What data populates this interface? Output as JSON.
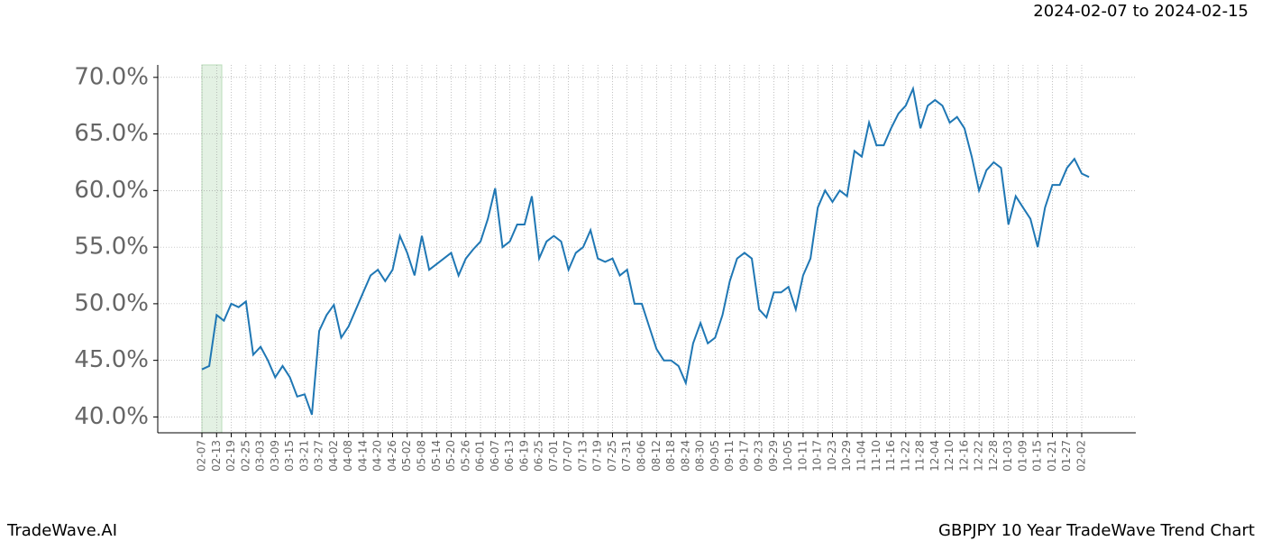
{
  "chart_data": {
    "type": "line",
    "title": "GBPJPY 10 Year TradeWave Trend Chart",
    "subtitle": "2024-02-07 to 2024-02-15",
    "brand": "TradeWave.AI",
    "categories": [
      "02-07",
      null,
      "02-13",
      null,
      "02-19",
      null,
      "02-25",
      null,
      "03-03",
      null,
      "03-09",
      null,
      "03-15",
      null,
      "03-21",
      null,
      "03-27",
      null,
      "04-02",
      null,
      "04-08",
      null,
      "04-14",
      null,
      "04-20",
      null,
      "04-26",
      null,
      "05-02",
      null,
      "05-08",
      null,
      "05-14",
      null,
      "05-20",
      null,
      "05-26",
      null,
      "06-01",
      null,
      "06-07",
      null,
      "06-13",
      null,
      "06-19",
      null,
      "06-25",
      null,
      "07-01",
      null,
      "07-07",
      null,
      "07-13",
      null,
      "07-19",
      null,
      "07-25",
      null,
      "07-31",
      null,
      "08-06",
      null,
      "08-12",
      null,
      "08-18",
      null,
      "08-24",
      null,
      "08-30",
      null,
      "09-05",
      null,
      "09-11",
      null,
      "09-17",
      null,
      "09-23",
      null,
      "09-29",
      null,
      "10-05",
      null,
      "10-11",
      null,
      "10-17",
      null,
      "10-23",
      null,
      "10-29",
      null,
      "11-04",
      null,
      "11-10",
      null,
      "11-16",
      null,
      "11-22",
      null,
      "11-28",
      null,
      "12-04",
      null,
      "12-10",
      null,
      "12-16",
      null,
      "12-22",
      null,
      "12-28",
      null,
      "01-03",
      null,
      "01-09",
      null,
      "01-15",
      null,
      "01-21",
      null,
      "01-27",
      null,
      "02-02",
      null
    ],
    "series": [
      {
        "name": "GBPJPY",
        "color": "#1f77b4",
        "values": [
          44.2,
          44.5,
          49.0,
          48.5,
          50.0,
          49.7,
          50.2,
          45.5,
          46.2,
          45.0,
          43.5,
          44.5,
          43.5,
          41.8,
          42.0,
          40.2,
          47.6,
          49.0,
          49.9,
          47.0,
          48.0,
          49.5,
          51.0,
          52.5,
          53.0,
          52.0,
          53.0,
          56.0,
          54.5,
          52.5,
          56.0,
          53.0,
          53.5,
          54.0,
          54.5,
          52.5,
          54.0,
          54.8,
          55.5,
          57.5,
          60.2,
          55.0,
          55.5,
          57.0,
          57.0,
          59.5,
          54.0,
          55.5,
          56.0,
          55.5,
          53.0,
          54.5,
          55.0,
          56.5,
          54.0,
          53.7,
          54.0,
          52.5,
          53.0,
          50.0,
          50.0,
          48.0,
          46.0,
          45.0,
          45.0,
          44.5,
          43.0,
          46.5,
          48.3,
          46.5,
          47.0,
          49.0,
          52.0,
          54.0,
          54.5,
          54.0,
          49.5,
          48.8,
          51.0,
          51.0,
          51.5,
          49.5,
          52.5,
          54.0,
          58.5,
          60.0,
          59.0,
          60.0,
          59.5,
          63.5,
          63.0,
          66.0,
          64.0,
          64.0,
          65.5,
          66.8,
          67.5,
          69.0,
          65.5,
          67.5,
          68.0,
          67.5,
          66.0,
          66.5,
          65.5,
          63.0,
          60.0,
          61.8,
          62.5,
          62.0,
          57.0,
          59.5,
          58.5,
          57.5,
          55.0,
          58.5,
          60.5,
          60.5,
          62.0,
          62.8,
          61.5,
          61.2
        ]
      }
    ],
    "ylim": [
      38.6,
      71.1
    ],
    "yticks": [
      {
        "value": 40,
        "label": "40.0%"
      },
      {
        "value": 45,
        "label": "45.0%"
      },
      {
        "value": 50,
        "label": "50.0%"
      },
      {
        "value": 55,
        "label": "55.0%"
      },
      {
        "value": 60,
        "label": "60.0%"
      },
      {
        "value": 65,
        "label": "65.0%"
      },
      {
        "value": 70,
        "label": "70.0%"
      }
    ],
    "grid": true
  }
}
